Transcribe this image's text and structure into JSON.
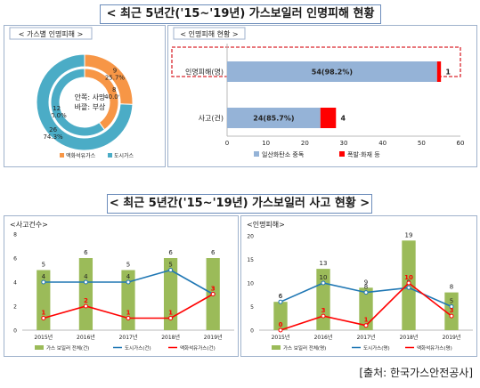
{
  "titles": {
    "top": "< 최근 5년간('15~'19년) 가스보일러 인명피해 현황 >",
    "bottom": "< 최근 5년간('15~'19년) 가스보일러 사고 현황 >"
  },
  "source": "[출처: 한국가스안전공사]",
  "colors": {
    "orange": "#f79646",
    "teal": "#4bacc6",
    "blue_bar": "#95b3d7",
    "red": "#ff0000",
    "green": "#9bbb59",
    "line_blue": "#1f77b4",
    "line_red": "#ff0000",
    "dash_red": "#d9262e"
  },
  "chart_data": [
    {
      "type": "pie",
      "subtype": "double-donut",
      "title": "< 가스별 인명피해 >",
      "center_labels": [
        "안쪽: 사망",
        "바깥: 부상"
      ],
      "series": [
        {
          "name": "사망",
          "ring": "inner",
          "values": [
            8,
            12
          ],
          "labels": [
            "8\n40.0%",
            "12\n60.0%"
          ]
        },
        {
          "name": "부상",
          "ring": "outer",
          "values": [
            9,
            26
          ],
          "labels": [
            "9\n25.7%",
            "26\n74.3%"
          ]
        }
      ],
      "legend": [
        "액화석유가스",
        "도시가스"
      ]
    },
    {
      "type": "bar",
      "orientation": "horizontal",
      "stacked": true,
      "title": "< 인명피해 현황 >",
      "categories": [
        "인명피해(명)",
        "사고(건)"
      ],
      "series": [
        {
          "name": "일산화탄소 중독",
          "values": [
            54,
            24
          ],
          "labels": [
            "54(98.2%)",
            "24(85.7%)"
          ]
        },
        {
          "name": "폭발·화재 등",
          "values": [
            1,
            4
          ],
          "labels": [
            "1",
            "4"
          ]
        }
      ],
      "xlim": [
        0,
        60
      ],
      "xticks": [
        "0",
        "10",
        "20",
        "30",
        "40",
        "50",
        "60"
      ],
      "legend_position": "bottom",
      "highlight": "인명피해(명)"
    },
    {
      "type": "bar",
      "title": "<사고건수>",
      "categories": [
        "2015년",
        "2016년",
        "2017년",
        "2018년",
        "2019년"
      ],
      "series": [
        {
          "name": "가스 보일러 전체(건)",
          "kind": "bar",
          "values": [
            5,
            6,
            5,
            6,
            6
          ]
        },
        {
          "name": "도시가스(건)",
          "kind": "line",
          "values": [
            4,
            4,
            4,
            5,
            3
          ]
        },
        {
          "name": "액화석유가스(건)",
          "kind": "line",
          "values": [
            1,
            2,
            1,
            1,
            3
          ]
        }
      ],
      "ylim": [
        0,
        8
      ],
      "yticks": [
        "0",
        "2",
        "4",
        "6",
        "8"
      ],
      "legend_position": "bottom"
    },
    {
      "type": "bar",
      "title": "<인명피해>",
      "categories": [
        "2015년",
        "2016년",
        "2017년",
        "2018년",
        "2019년"
      ],
      "series": [
        {
          "name": "가스 보일러 전체(명)",
          "kind": "bar",
          "values": [
            6,
            13,
            9,
            19,
            8
          ]
        },
        {
          "name": "도시가스(명)",
          "kind": "line",
          "values": [
            6,
            10,
            8,
            9,
            5
          ]
        },
        {
          "name": "액화석유가스(명)",
          "kind": "line",
          "values": [
            0,
            3,
            1,
            10,
            3
          ]
        }
      ],
      "ylim": [
        0,
        20
      ],
      "yticks": [
        "0",
        "5",
        "10",
        "15",
        "20"
      ],
      "legend_position": "bottom"
    }
  ]
}
